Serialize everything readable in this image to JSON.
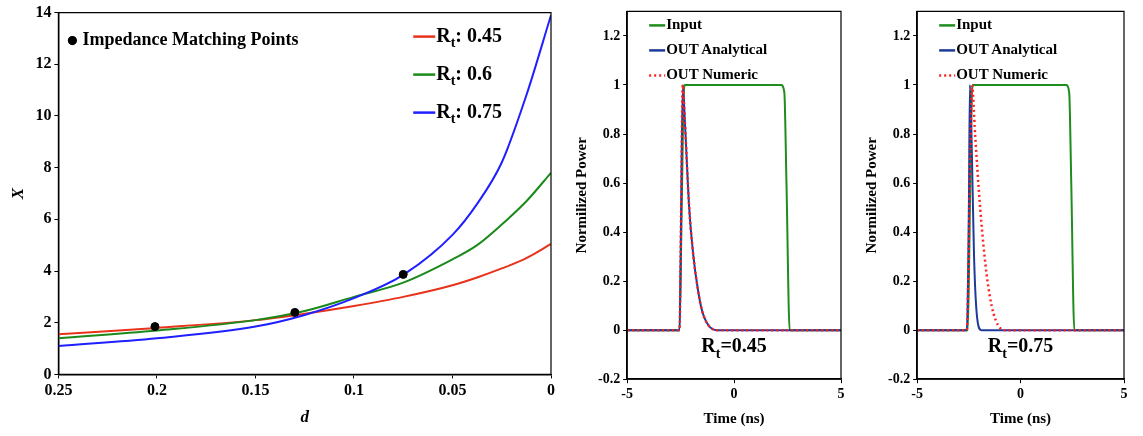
{
  "chart_data": [
    {
      "type": "line",
      "xlabel": "d",
      "ylabel": "X",
      "xlim": [
        0.25,
        0
      ],
      "xticks": [
        0.25,
        0.2,
        0.15,
        0.1,
        0.05,
        0
      ],
      "ylim": [
        0,
        14
      ],
      "yticks": [
        0,
        2,
        4,
        6,
        8,
        10,
        12,
        14
      ],
      "legend": "top right",
      "series": [
        {
          "name": "R$_{t}$: 0.45",
          "color": "#e8321a",
          "x": [
            0.25,
            0.2,
            0.15,
            0.125,
            0.1,
            0.075,
            0.05,
            0.0375,
            0.025,
            0.0125,
            0
          ],
          "values": [
            1.55,
            1.8,
            2.1,
            2.35,
            2.65,
            3.0,
            3.45,
            3.75,
            4.1,
            4.5,
            5.05
          ]
        },
        {
          "name": "R$_{t}$: 0.6",
          "color": "#1a8a1a",
          "x": [
            0.25,
            0.2,
            0.15,
            0.125,
            0.1,
            0.075,
            0.05,
            0.0375,
            0.025,
            0.0125,
            0
          ],
          "values": [
            1.4,
            1.7,
            2.1,
            2.45,
            3.0,
            3.55,
            4.45,
            5.0,
            5.8,
            6.7,
            7.8
          ]
        },
        {
          "name": "R$_{t}$: 0.75",
          "color": "#1f1fff",
          "x": [
            0.25,
            0.2,
            0.15,
            0.125,
            0.1,
            0.075,
            0.05,
            0.0375,
            0.025,
            0.0125,
            0
          ],
          "values": [
            1.1,
            1.4,
            1.85,
            2.3,
            2.95,
            3.85,
            5.4,
            6.6,
            8.2,
            10.8,
            13.9
          ]
        },
        {
          "name": "Impedance Matching Points",
          "type": "scatter",
          "marker": "circle",
          "color": "#000000",
          "x": [
            0.201,
            0.13,
            0.075
          ],
          "values": [
            1.85,
            2.4,
            3.87
          ]
        }
      ]
    },
    {
      "type": "line",
      "xlabel": "Time (ns)",
      "ylabel": "Normilized Power",
      "xlim": [
        -5,
        5
      ],
      "xticks": [
        -5,
        0,
        5
      ],
      "ylim": [
        -0.2,
        1.3
      ],
      "yticks": [
        -0.2,
        0,
        0.2,
        0.4,
        0.6,
        0.8,
        1,
        1.2
      ],
      "legend": "top left",
      "annotations": [
        "R$_{t}$=0.45"
      ],
      "series": [
        {
          "name": "Input",
          "color": "#1e8c1e",
          "x": [
            -5,
            -2.55,
            -2.45,
            -2.35,
            -2.3,
            2.2,
            2.35,
            2.45,
            2.6,
            5
          ],
          "values": [
            0,
            0,
            0.5,
            0.97,
            1,
            1,
            0.97,
            0.6,
            0,
            0
          ]
        },
        {
          "name": "OUT Analytical",
          "color": "#1f3a9a",
          "x": [
            -5,
            -2.55,
            -2.5,
            -2.4,
            -2.3,
            -2.1,
            -1.9,
            -1.7,
            -1.5,
            -1.2,
            -0.8,
            5
          ],
          "values": [
            0,
            0,
            0.3,
            1,
            0.85,
            0.5,
            0.3,
            0.17,
            0.08,
            0.02,
            0,
            0
          ]
        },
        {
          "name": "OUT Numeric",
          "color": "#ff2020",
          "line_style": "dotted",
          "x": [
            -5,
            -2.55,
            -2.5,
            -2.4,
            -2.3,
            -2.1,
            -1.9,
            -1.7,
            -1.5,
            -1.2,
            -0.8,
            5
          ],
          "values": [
            0,
            0,
            0.3,
            1,
            0.85,
            0.5,
            0.3,
            0.17,
            0.08,
            0.02,
            0,
            0
          ]
        }
      ]
    },
    {
      "type": "line",
      "xlabel": "Time (ns)",
      "ylabel": "Normilized Power",
      "xlim": [
        -5,
        5
      ],
      "xticks": [
        -5,
        0,
        5
      ],
      "ylim": [
        -0.2,
        1.3
      ],
      "yticks": [
        -0.2,
        0,
        0.2,
        0.4,
        0.6,
        0.8,
        1,
        1.2
      ],
      "legend": "top left",
      "annotations": [
        "R$_{t}$=0.75"
      ],
      "series": [
        {
          "name": "Input",
          "color": "#1e8c1e",
          "x": [
            -5,
            -2.55,
            -2.45,
            -2.35,
            -2.3,
            2.2,
            2.35,
            2.45,
            2.6,
            5
          ],
          "values": [
            0,
            0,
            0.5,
            0.97,
            1,
            1,
            0.97,
            0.6,
            0,
            0
          ]
        },
        {
          "name": "OUT Analytical",
          "color": "#1f3a9a",
          "x": [
            -5,
            -2.6,
            -2.5,
            -2.45,
            -2.35,
            -2.25,
            -2.1,
            -1.9,
            5
          ],
          "values": [
            0,
            0,
            0.5,
            1,
            0.7,
            0.3,
            0.05,
            0,
            0
          ]
        },
        {
          "name": "OUT Numeric",
          "color": "#ff2020",
          "line_style": "dotted",
          "x": [
            -5,
            -2.6,
            -2.45,
            -2.35,
            -2.2,
            -2.0,
            -1.8,
            -1.6,
            -1.4,
            -1.2,
            -1.0,
            -0.8,
            5
          ],
          "values": [
            0,
            0,
            0.6,
            1,
            0.8,
            0.55,
            0.35,
            0.2,
            0.1,
            0.04,
            0.01,
            0,
            0
          ]
        }
      ]
    }
  ]
}
